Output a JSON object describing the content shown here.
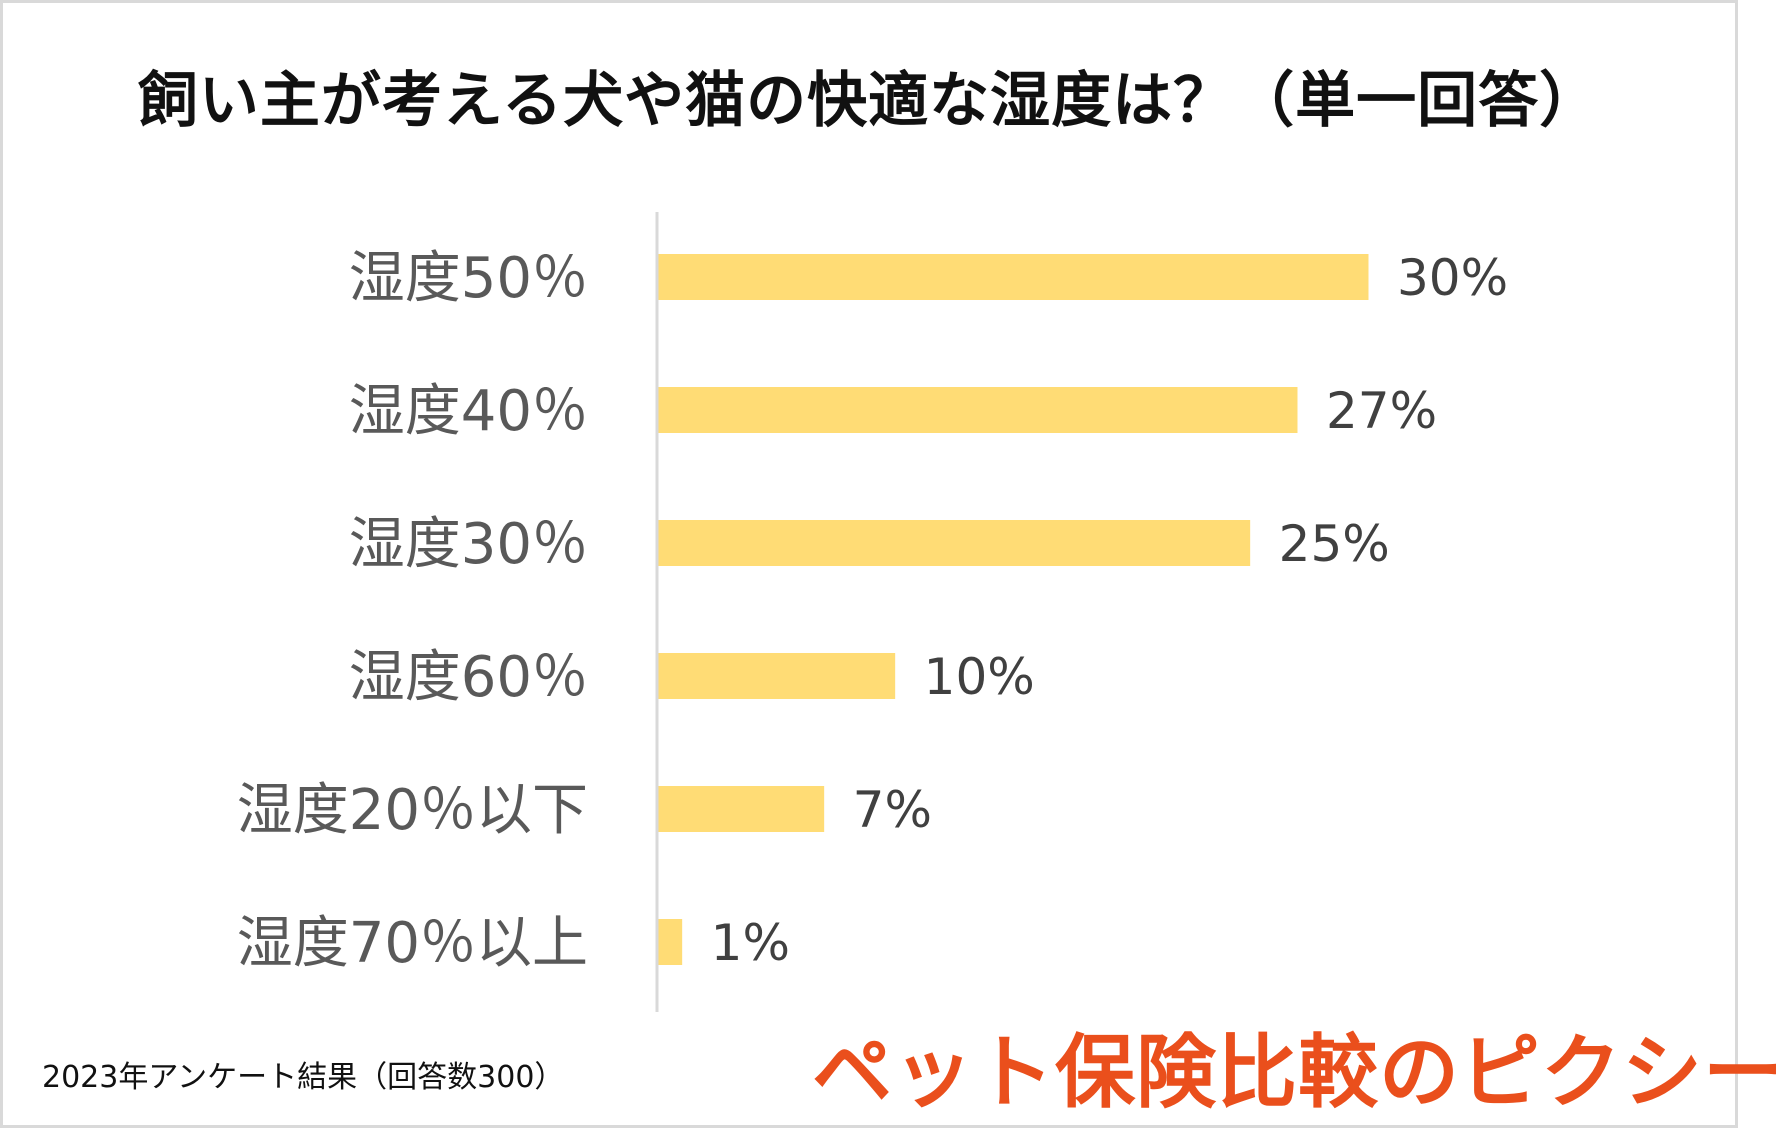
{
  "title": "飼い主が考える犬や猫の快適な湿度は？（単一回答）",
  "footnote": "2023年アンケート結果（回答数300）",
  "brand": "ペット保険比較のピクシー",
  "colors": {
    "bar": "#ffdc75",
    "axis": "#d9d9d9"
  },
  "chart_data": {
    "type": "bar",
    "orientation": "horizontal",
    "title": "飼い主が考える犬や猫の快適な湿度は？（単一回答）",
    "xlabel": "",
    "ylabel": "",
    "xlim": [
      0,
      30
    ],
    "grid": false,
    "categories": [
      "湿度50％",
      "湿度40％",
      "湿度30％",
      "湿度60％",
      "湿度20％以下",
      "湿度70％以上"
    ],
    "values": [
      30,
      27,
      25,
      10,
      7,
      1
    ],
    "value_labels": [
      "30%",
      "27%",
      "25%",
      "10%",
      "7%",
      "1%"
    ]
  }
}
